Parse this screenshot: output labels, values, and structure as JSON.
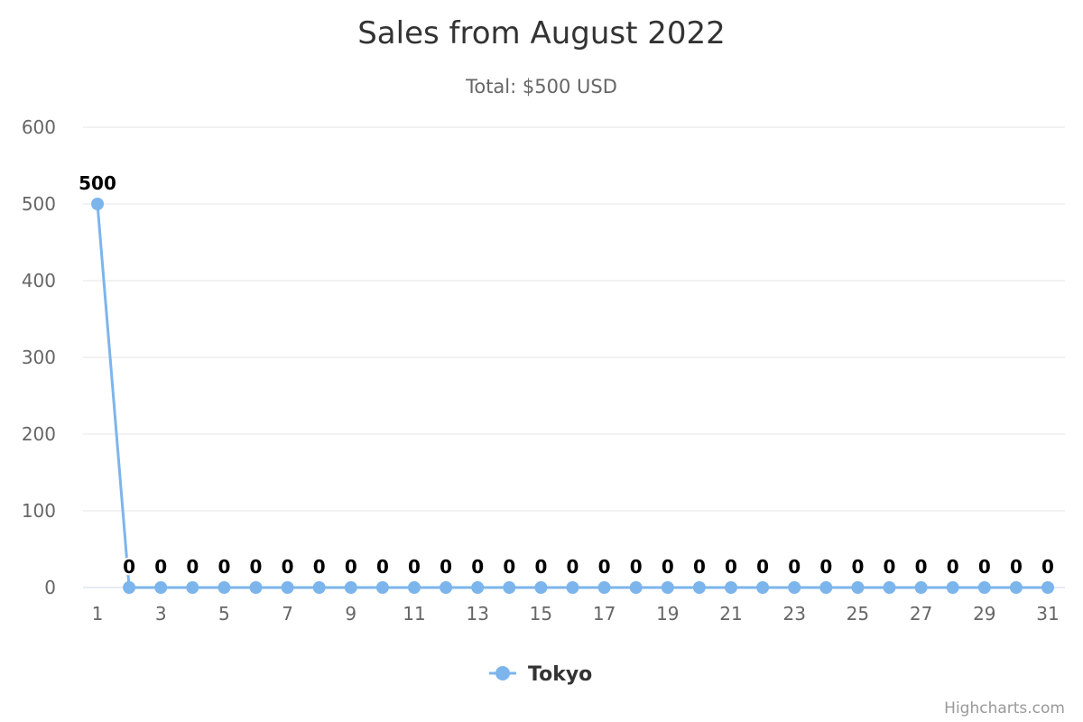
{
  "chart_data": {
    "type": "line",
    "title": "Sales from August 2022",
    "subtitle": "Total: $500 USD",
    "xlabel": "",
    "ylabel": "",
    "x": [
      1,
      2,
      3,
      4,
      5,
      6,
      7,
      8,
      9,
      10,
      11,
      12,
      13,
      14,
      15,
      16,
      17,
      18,
      19,
      20,
      21,
      22,
      23,
      24,
      25,
      26,
      27,
      28,
      29,
      30,
      31
    ],
    "x_tick_labels": [
      "1",
      "3",
      "5",
      "7",
      "9",
      "11",
      "13",
      "15",
      "17",
      "19",
      "21",
      "23",
      "25",
      "27",
      "29",
      "31"
    ],
    "ylim": [
      0,
      600
    ],
    "y_ticks": [
      0,
      100,
      200,
      300,
      400,
      500,
      600
    ],
    "grid": true,
    "legend_position": "bottom-center",
    "data_labels": true,
    "series": [
      {
        "name": "Tokyo",
        "color": "#7cb5ec",
        "values": [
          500,
          0,
          0,
          0,
          0,
          0,
          0,
          0,
          0,
          0,
          0,
          0,
          0,
          0,
          0,
          0,
          0,
          0,
          0,
          0,
          0,
          0,
          0,
          0,
          0,
          0,
          0,
          0,
          0,
          0,
          0
        ]
      }
    ],
    "credits": "Highcharts.com"
  }
}
